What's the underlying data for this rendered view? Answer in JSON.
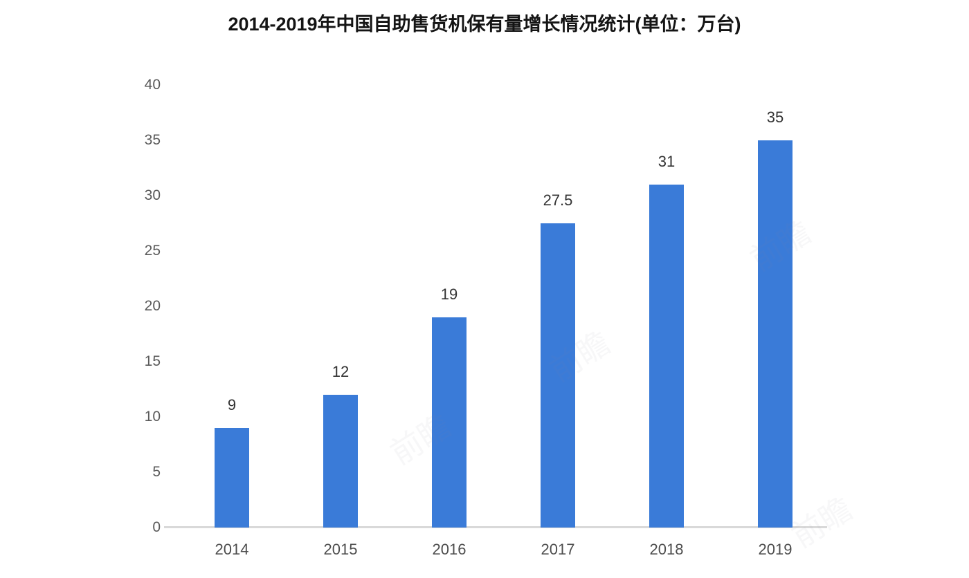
{
  "chart_data": {
    "type": "bar",
    "title": "2014-2019年中国自助售货机保有量增长情况统计(单位：万台)",
    "categories": [
      "2014",
      "2015",
      "2016",
      "2017",
      "2018",
      "2019"
    ],
    "values": [
      9,
      12,
      19,
      27.5,
      31,
      35
    ],
    "value_labels": [
      "9",
      "12",
      "19",
      "27.5",
      "31",
      "35"
    ],
    "y_ticks": [
      0,
      5,
      10,
      15,
      20,
      25,
      30,
      35,
      40
    ],
    "ylim": [
      0,
      40
    ],
    "xlabel": "",
    "ylabel": "",
    "grid": false,
    "legend": "none",
    "bar_color": "#3a7bd8",
    "axis_line_color": "#d9d9d9"
  },
  "watermark": {
    "text": "前瞻"
  }
}
